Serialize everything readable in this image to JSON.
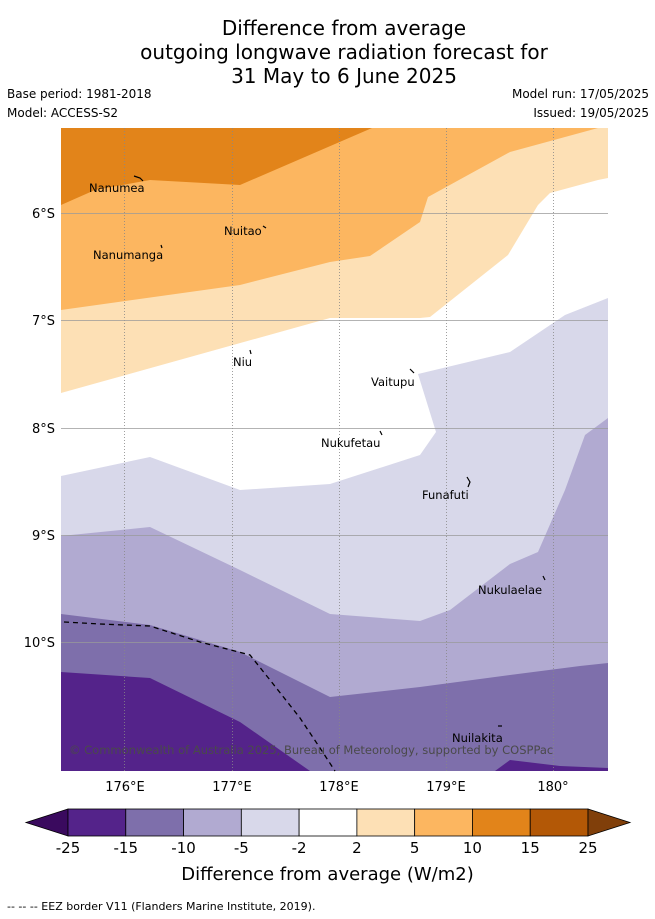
{
  "title_line1": "Difference from average",
  "title_line2": "outgoing longwave radiation forecast for",
  "title_line3": "31 May to 6 June 2025",
  "base_period": "Base period: 1981-2018",
  "model": "Model: ACCESS-S2",
  "model_run": "Model run: 17/05/2025",
  "issued": "Issued: 19/05/2025",
  "copyright": "© Commonwealth of Australia 2025, Bureau of Meteorology, supported by COSPPac",
  "lon_ticks": [
    "176°E",
    "177°E",
    "178°E",
    "179°E",
    "180°"
  ],
  "lat_ticks": [
    "6°S",
    "7°S",
    "8°S",
    "9°S",
    "10°S"
  ],
  "places": [
    "Nanumea",
    "Nuitao",
    "Nanumanga",
    "Niu",
    "Vaitupu",
    "Nukufetau",
    "Funafuti",
    "Nukulaelae",
    "Nuilakita"
  ],
  "colorbar": {
    "ticks": [
      "-25",
      "-15",
      "-10",
      "-5",
      "-2",
      "2",
      "5",
      "10",
      "15",
      "25"
    ],
    "colors": [
      "#3a0a5e",
      "#54238a",
      "#7e6fab",
      "#b1aad1",
      "#d8d8ea",
      "#ffffff",
      "#fde0b5",
      "#fcb660",
      "#e2841a",
      "#b35806",
      "#803f0a"
    ],
    "label": "Difference from average (W/m2)"
  },
  "footnote": "--  --  -- EEZ border V11 (Flanders Marine Institute, 2019)."
}
